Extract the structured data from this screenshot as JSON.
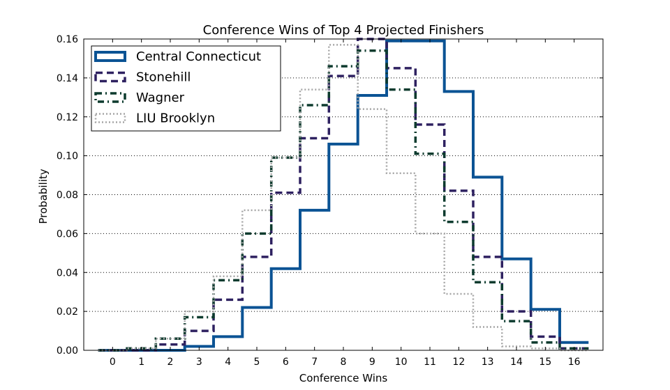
{
  "chart_data": {
    "type": "step",
    "title": "Conference Wins of Top 4 Projected Finishers",
    "xlabel": "Conference Wins",
    "ylabel": "Probability",
    "xlim": [
      -1,
      17
    ],
    "ylim": [
      0.0,
      0.16
    ],
    "x_ticks": [
      0,
      1,
      2,
      3,
      4,
      5,
      6,
      7,
      8,
      9,
      10,
      11,
      12,
      13,
      14,
      15,
      16
    ],
    "y_ticks": [
      0.0,
      0.02,
      0.04,
      0.06,
      0.08,
      0.1,
      0.12,
      0.14,
      0.16
    ],
    "y_tick_labels": [
      "0.00",
      "0.02",
      "0.04",
      "0.06",
      "0.08",
      "0.10",
      "0.12",
      "0.14",
      "0.16"
    ],
    "grid": "horizontal-dotted",
    "legend_position": "top-left",
    "series": [
      {
        "name": "Central Connecticut",
        "color": "#0b5394",
        "style": "solid",
        "values": [
          0.0,
          0.0,
          0.0,
          0.002,
          0.007,
          0.022,
          0.042,
          0.072,
          0.106,
          0.131,
          0.159,
          0.159,
          0.133,
          0.089,
          0.047,
          0.021,
          0.004
        ]
      },
      {
        "name": "Stonehill",
        "color": "#2e2160",
        "style": "dashed",
        "values": [
          0.0,
          0.0,
          0.003,
          0.01,
          0.026,
          0.048,
          0.081,
          0.109,
          0.141,
          0.16,
          0.145,
          0.116,
          0.082,
          0.048,
          0.02,
          0.007,
          0.001
        ]
      },
      {
        "name": "Wagner",
        "color": "#0d3b2e",
        "style": "dashdot",
        "values": [
          0.0,
          0.001,
          0.006,
          0.017,
          0.036,
          0.06,
          0.099,
          0.126,
          0.146,
          0.154,
          0.134,
          0.101,
          0.066,
          0.035,
          0.015,
          0.004,
          0.001
        ]
      },
      {
        "name": "LIU Brooklyn",
        "color": "#a6a6a6",
        "style": "dotted",
        "values": [
          0.0,
          0.001,
          0.006,
          0.02,
          0.038,
          0.072,
          0.099,
          0.134,
          0.157,
          0.124,
          0.091,
          0.06,
          0.029,
          0.012,
          0.002,
          0.001,
          0.0
        ]
      }
    ]
  }
}
